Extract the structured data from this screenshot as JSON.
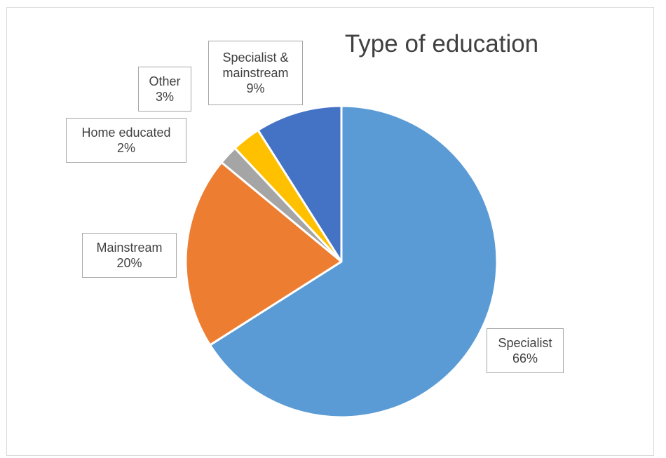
{
  "chart_data": {
    "type": "pie",
    "title": "Type of education",
    "start_angle_deg": 0,
    "direction": "clockwise",
    "slices": [
      {
        "name": "Specialist",
        "value": 66,
        "label": "66%",
        "color": "#5b9bd5"
      },
      {
        "name": "Mainstream",
        "value": 20,
        "label": "20%",
        "color": "#ed7d31"
      },
      {
        "name": "Home educated",
        "value": 2,
        "label": "2%",
        "color": "#a5a5a5"
      },
      {
        "name": "Other",
        "value": 3,
        "label": "3%",
        "color": "#ffc000"
      },
      {
        "name": "Specialist & mainstream",
        "value": 9,
        "label": "9%",
        "color": "#4472c4"
      }
    ]
  },
  "labels": {
    "specialist": {
      "line1": "Specialist",
      "line2": "66%"
    },
    "mainstream": {
      "line1": "Mainstream",
      "line2": "20%"
    },
    "home_educated": {
      "line1": "Home educated",
      "line2": "2%"
    },
    "other": {
      "line1": "Other",
      "line2": "3%"
    },
    "specialist_mainstream": {
      "line1": "Specialist &",
      "line2": "mainstream",
      "line3": "9%"
    }
  }
}
